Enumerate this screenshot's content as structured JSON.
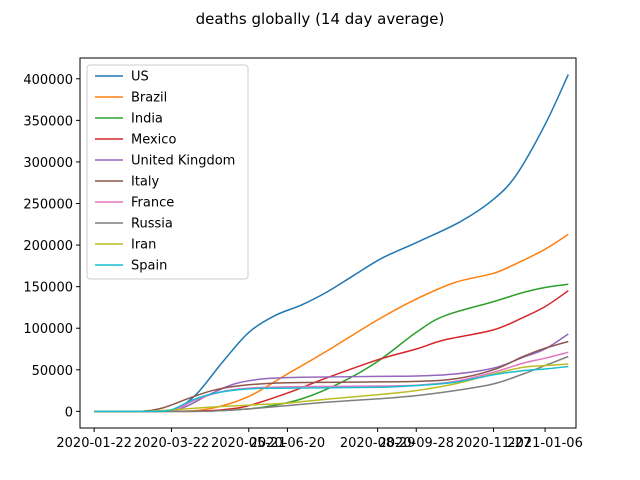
{
  "chart_data": {
    "type": "line",
    "title": "deaths globally (14 day average)",
    "xlabel": "",
    "ylabel": "",
    "x_ticks": [
      "2020-01-22",
      "2020-03-22",
      "2020-05-21",
      "2020-06-20",
      "2020-08-29",
      "2020-09-28",
      "2020-11-27",
      "2021-01-06"
    ],
    "y_ticks": [
      0,
      50000,
      100000,
      150000,
      200000,
      250000,
      300000,
      350000,
      400000
    ],
    "xlim": [
      "2020-01-11",
      "2021-01-30"
    ],
    "ylim": [
      -20000,
      425000
    ],
    "grid": false,
    "legend_position": "top-left",
    "series": [
      {
        "name": "US",
        "color": "#1f77b4",
        "points": [
          [
            "2020-01-22",
            0
          ],
          [
            "2020-03-10",
            0
          ],
          [
            "2020-03-25",
            3000
          ],
          [
            "2020-04-10",
            20000
          ],
          [
            "2020-05-01",
            60000
          ],
          [
            "2020-05-21",
            95000
          ],
          [
            "2020-06-10",
            115000
          ],
          [
            "2020-07-01",
            128000
          ],
          [
            "2020-07-20",
            143000
          ],
          [
            "2020-08-10",
            163000
          ],
          [
            "2020-09-01",
            184000
          ],
          [
            "2020-10-01",
            205000
          ],
          [
            "2020-11-01",
            228000
          ],
          [
            "2020-11-27",
            255000
          ],
          [
            "2020-12-15",
            285000
          ],
          [
            "2021-01-06",
            345000
          ],
          [
            "2021-01-24",
            405000
          ]
        ]
      },
      {
        "name": "Brazil",
        "color": "#ff7f0e",
        "points": [
          [
            "2020-01-22",
            0
          ],
          [
            "2020-03-20",
            0
          ],
          [
            "2020-04-20",
            3000
          ],
          [
            "2020-05-21",
            18000
          ],
          [
            "2020-06-20",
            45000
          ],
          [
            "2020-07-20",
            72000
          ],
          [
            "2020-08-29",
            110000
          ],
          [
            "2020-09-28",
            135000
          ],
          [
            "2020-10-28",
            155000
          ],
          [
            "2020-11-27",
            166000
          ],
          [
            "2020-12-15",
            178000
          ],
          [
            "2021-01-06",
            195000
          ],
          [
            "2021-01-24",
            213000
          ]
        ]
      },
      {
        "name": "India",
        "color": "#2ca02c",
        "points": [
          [
            "2020-01-22",
            0
          ],
          [
            "2020-04-01",
            0
          ],
          [
            "2020-05-01",
            1000
          ],
          [
            "2020-06-01",
            5000
          ],
          [
            "2020-07-01",
            15000
          ],
          [
            "2020-08-01",
            35000
          ],
          [
            "2020-08-29",
            60000
          ],
          [
            "2020-09-28",
            95000
          ],
          [
            "2020-10-20",
            115000
          ],
          [
            "2020-11-27",
            132000
          ],
          [
            "2020-12-20",
            143000
          ],
          [
            "2021-01-06",
            149000
          ],
          [
            "2021-01-24",
            153000
          ]
        ]
      },
      {
        "name": "Mexico",
        "color": "#d62728",
        "points": [
          [
            "2020-01-22",
            0
          ],
          [
            "2020-04-01",
            0
          ],
          [
            "2020-05-01",
            2000
          ],
          [
            "2020-05-21",
            7000
          ],
          [
            "2020-06-20",
            22000
          ],
          [
            "2020-07-20",
            40000
          ],
          [
            "2020-08-29",
            62000
          ],
          [
            "2020-09-28",
            75000
          ],
          [
            "2020-10-20",
            86000
          ],
          [
            "2020-11-27",
            98000
          ],
          [
            "2020-12-20",
            113000
          ],
          [
            "2021-01-06",
            126000
          ],
          [
            "2021-01-24",
            145000
          ]
        ]
      },
      {
        "name": "United Kingdom",
        "color": "#9467bd",
        "points": [
          [
            "2020-01-22",
            0
          ],
          [
            "2020-03-15",
            0
          ],
          [
            "2020-04-01",
            5000
          ],
          [
            "2020-04-20",
            20000
          ],
          [
            "2020-05-10",
            33000
          ],
          [
            "2020-06-01",
            39000
          ],
          [
            "2020-07-01",
            41000
          ],
          [
            "2020-08-29",
            42000
          ],
          [
            "2020-09-28",
            42500
          ],
          [
            "2020-10-28",
            45000
          ],
          [
            "2020-11-27",
            52000
          ],
          [
            "2020-12-20",
            65000
          ],
          [
            "2021-01-06",
            75000
          ],
          [
            "2021-01-24",
            93000
          ]
        ]
      },
      {
        "name": "Italy",
        "color": "#8c564b",
        "points": [
          [
            "2020-01-22",
            0
          ],
          [
            "2020-02-25",
            0
          ],
          [
            "2020-03-15",
            4000
          ],
          [
            "2020-04-05",
            16000
          ],
          [
            "2020-04-25",
            26000
          ],
          [
            "2020-05-21",
            32000
          ],
          [
            "2020-06-20",
            34500
          ],
          [
            "2020-08-29",
            35500
          ],
          [
            "2020-09-28",
            36000
          ],
          [
            "2020-10-28",
            39000
          ],
          [
            "2020-11-27",
            50000
          ],
          [
            "2020-12-20",
            66000
          ],
          [
            "2021-01-06",
            76000
          ],
          [
            "2021-01-24",
            84000
          ]
        ]
      },
      {
        "name": "France",
        "color": "#e377c2",
        "points": [
          [
            "2020-01-22",
            0
          ],
          [
            "2020-03-10",
            0
          ],
          [
            "2020-03-25",
            2000
          ],
          [
            "2020-04-10",
            14000
          ],
          [
            "2020-05-01",
            24000
          ],
          [
            "2020-05-21",
            28000
          ],
          [
            "2020-06-20",
            29500
          ],
          [
            "2020-08-29",
            30500
          ],
          [
            "2020-09-28",
            31500
          ],
          [
            "2020-10-28",
            36000
          ],
          [
            "2020-11-27",
            47000
          ],
          [
            "2020-12-20",
            58000
          ],
          [
            "2021-01-06",
            64000
          ],
          [
            "2021-01-24",
            71000
          ]
        ]
      },
      {
        "name": "Russia",
        "color": "#7f7f7f",
        "points": [
          [
            "2020-01-22",
            0
          ],
          [
            "2020-04-10",
            0
          ],
          [
            "2020-05-01",
            1000
          ],
          [
            "2020-05-21",
            3000
          ],
          [
            "2020-06-20",
            7000
          ],
          [
            "2020-07-20",
            11000
          ],
          [
            "2020-08-29",
            15000
          ],
          [
            "2020-09-28",
            19000
          ],
          [
            "2020-10-28",
            25000
          ],
          [
            "2020-11-27",
            33000
          ],
          [
            "2020-12-20",
            45000
          ],
          [
            "2021-01-06",
            55000
          ],
          [
            "2021-01-24",
            66000
          ]
        ]
      },
      {
        "name": "Iran",
        "color": "#bcbd22",
        "points": [
          [
            "2020-01-22",
            0
          ],
          [
            "2020-02-25",
            0
          ],
          [
            "2020-03-20",
            1500
          ],
          [
            "2020-04-20",
            5000
          ],
          [
            "2020-05-21",
            7500
          ],
          [
            "2020-06-20",
            10000
          ],
          [
            "2020-07-20",
            14500
          ],
          [
            "2020-08-29",
            20000
          ],
          [
            "2020-09-28",
            25000
          ],
          [
            "2020-10-28",
            33000
          ],
          [
            "2020-11-27",
            45000
          ],
          [
            "2020-12-20",
            53000
          ],
          [
            "2021-01-06",
            55000
          ],
          [
            "2021-01-24",
            57000
          ]
        ]
      },
      {
        "name": "Spain",
        "color": "#17becf",
        "points": [
          [
            "2020-01-22",
            0
          ],
          [
            "2020-03-08",
            0
          ],
          [
            "2020-03-22",
            2000
          ],
          [
            "2020-04-08",
            14000
          ],
          [
            "2020-04-25",
            22000
          ],
          [
            "2020-05-21",
            27000
          ],
          [
            "2020-06-20",
            28000
          ],
          [
            "2020-08-29",
            29000
          ],
          [
            "2020-09-28",
            31000
          ],
          [
            "2020-10-28",
            35000
          ],
          [
            "2020-11-27",
            44000
          ],
          [
            "2020-12-20",
            49000
          ],
          [
            "2021-01-06",
            51000
          ],
          [
            "2021-01-24",
            54000
          ]
        ]
      }
    ]
  }
}
